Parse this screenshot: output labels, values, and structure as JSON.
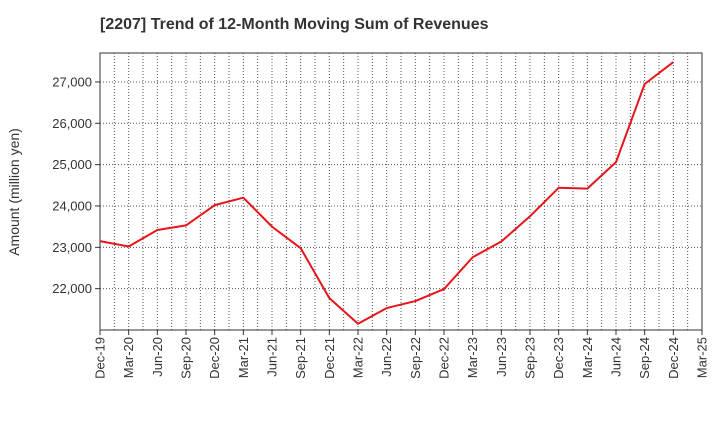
{
  "chart_data": {
    "type": "line",
    "title": "[2207]  Trend of 12-Month Moving Sum of Revenues",
    "xlabel": "",
    "ylabel": "Amount (million yen)",
    "categories": [
      "Dec-19",
      "Mar-20",
      "Jun-20",
      "Sep-20",
      "Dec-20",
      "Mar-21",
      "Jun-21",
      "Sep-21",
      "Dec-21",
      "Mar-22",
      "Jun-22",
      "Sep-22",
      "Dec-22",
      "Mar-23",
      "Jun-23",
      "Sep-23",
      "Dec-23",
      "Mar-24",
      "Jun-24",
      "Sep-24",
      "Dec-24",
      "Mar-25"
    ],
    "series": [
      {
        "color": "#e8141b",
        "values": [
          23150,
          23020,
          23420,
          23530,
          24020,
          24200,
          23500,
          22980,
          21770,
          21150,
          21530,
          21700,
          21990,
          22760,
          23140,
          23750,
          24440,
          24420,
          25060,
          26950,
          27480,
          null
        ]
      }
    ],
    "yticks": [
      "22,000",
      "23,000",
      "24,000",
      "25,000",
      "26,000",
      "27,000"
    ],
    "ylim": [
      21000,
      27700
    ],
    "grid": true,
    "legend": "none"
  }
}
